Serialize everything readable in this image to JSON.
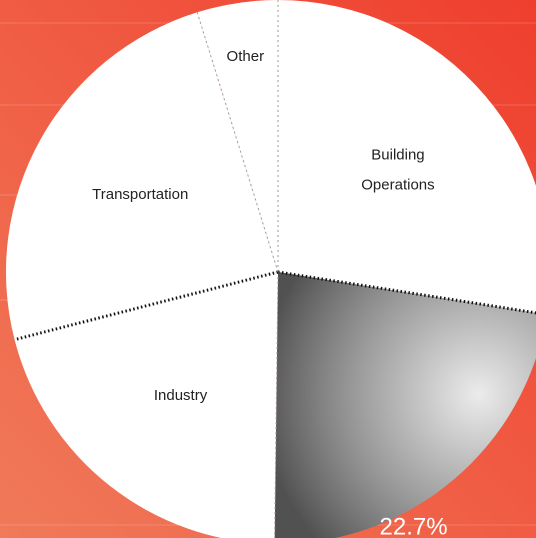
{
  "chart_data": {
    "type": "pie",
    "categories": [
      "Building Operations",
      null,
      "Industry",
      "Transportation",
      "Other"
    ],
    "values": [
      27.5,
      22.7,
      20.8,
      24.2,
      4.8
    ],
    "value_labels": [
      null,
      "22.7%",
      null,
      null,
      null
    ],
    "colors": [
      "#ffffff",
      "#7d7d7d",
      "#ffffff",
      "#ffffff",
      "#ffffff"
    ]
  }
}
